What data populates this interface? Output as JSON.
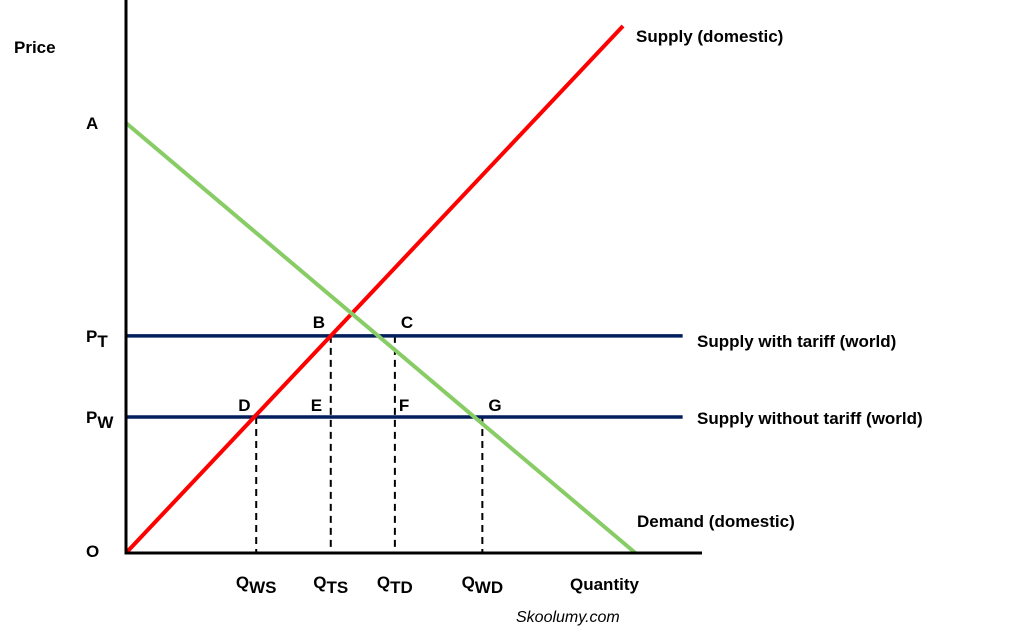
{
  "chart_data": {
    "type": "line",
    "title": "",
    "xlabel": "Quantity",
    "ylabel": "Price",
    "origin_label": "O",
    "credit": "Skoolumy.com",
    "xlim": [
      0,
      100
    ],
    "ylim": [
      0,
      100
    ],
    "colors": {
      "axis": "#000000",
      "supply": "#ff0000",
      "demand": "#88cc66",
      "world": "#001f5c",
      "guide": "#000000"
    },
    "lines": [
      {
        "name": "Supply (domestic)",
        "role": "supply",
        "x1": 0,
        "y1": 0,
        "x2": 100,
        "y2": 100
      },
      {
        "name": "Demand (domestic)",
        "role": "demand",
        "x1": 0,
        "y1": 81.6,
        "x2": 102.5,
        "y2": 0
      },
      {
        "name": "Supply with tariff (world)",
        "role": "world",
        "x1": 0,
        "y1": 41.2,
        "x2": 112,
        "y2": 41.2
      },
      {
        "name": "Supply without tariff (world)",
        "role": "world",
        "x1": 0,
        "y1": 25.8,
        "x2": 112,
        "y2": 25.8
      }
    ],
    "y_ticks": [
      {
        "main": "A",
        "sub": "",
        "value": 81.6
      },
      {
        "main": "P",
        "sub": "T",
        "value": 41.2
      },
      {
        "main": "P",
        "sub": "W",
        "value": 25.8
      }
    ],
    "x_ticks": [
      {
        "main": "Q",
        "sub": "WS",
        "value": 26.2
      },
      {
        "main": "Q",
        "sub": "TS",
        "value": 41.2
      },
      {
        "main": "Q",
        "sub": "TD",
        "value": 54.1
      },
      {
        "main": "Q",
        "sub": "WD",
        "value": 71.7
      }
    ],
    "guides": [
      {
        "x": 26.2,
        "y": 25.8
      },
      {
        "x": 41.2,
        "y": 41.2
      },
      {
        "x": 54.1,
        "y": 41.2
      },
      {
        "x": 71.7,
        "y": 25.8
      }
    ],
    "points": [
      {
        "label": "B",
        "x": 41.2,
        "y": 41.2
      },
      {
        "label": "C",
        "x": 54.1,
        "y": 41.2
      },
      {
        "label": "D",
        "x": 26.2,
        "y": 25.8
      },
      {
        "label": "E",
        "x": 41.2,
        "y": 25.8
      },
      {
        "label": "F",
        "x": 54.1,
        "y": 25.8
      },
      {
        "label": "G",
        "x": 71.7,
        "y": 25.8
      }
    ]
  }
}
